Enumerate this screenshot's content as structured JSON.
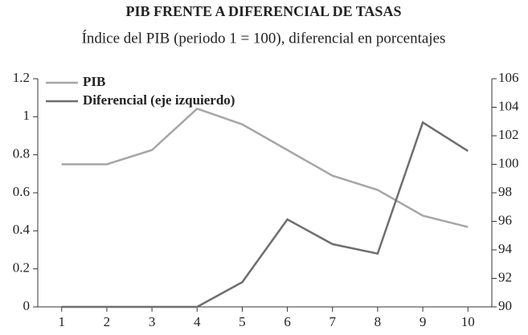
{
  "chart_data": {
    "type": "line",
    "title": "PIB FRENTE A DIFERENCIAL DE TASAS",
    "subtitle": "Índice del PIB (periodo 1 = 100), diferencial en porcentajes",
    "x": [
      1,
      2,
      3,
      4,
      5,
      6,
      7,
      8,
      9,
      10
    ],
    "xlim": [
      0.47,
      10.53
    ],
    "xticks": [
      1,
      2,
      3,
      4,
      5,
      6,
      7,
      8,
      9,
      10
    ],
    "ylim": [
      0,
      1.2
    ],
    "yticks": [
      0,
      0.2,
      0.4,
      0.6,
      0.8,
      1,
      1.2
    ],
    "y2lim": [
      90,
      106
    ],
    "y2ticks": [
      90,
      92,
      94,
      96,
      98,
      100,
      102,
      104,
      106
    ],
    "legend": "top-left",
    "series": [
      {
        "name": "PIB",
        "color": "#a6a6a6",
        "axis": "y2",
        "values": [
          100,
          100,
          101,
          103.9,
          102.8,
          101,
          99.2,
          98.2,
          96.4,
          95.6
        ]
      },
      {
        "name": "Diferencial (eje izquierdo)",
        "color": "#6e6e6e",
        "values": [
          0,
          0,
          0,
          0,
          0.13,
          0.46,
          0.33,
          0.28,
          0.97,
          0.82
        ]
      }
    ]
  }
}
